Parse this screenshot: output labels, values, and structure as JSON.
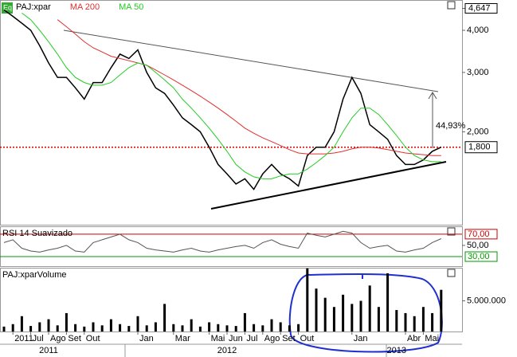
{
  "chart_data": [
    {
      "type": "line",
      "yscale": "log",
      "legend": "top-left",
      "legend_icon": "Eq",
      "ylim": [
        1.06,
        4.92
      ],
      "yticks": [
        {
          "value": 4,
          "label": "4,000"
        },
        {
          "value": 3,
          "label": "3,000"
        },
        {
          "value": 2,
          "label": "2,000"
        }
      ],
      "high_label": {
        "value": 4.647,
        "label": "4,647"
      },
      "reference_line": {
        "value": 1.8,
        "label": "1,800",
        "color": "#dd0000"
      },
      "annotation": "44,93%",
      "series": [
        {
          "name": "PAJ:xpar",
          "color": "#000000",
          "values": [
            4.6,
            4.4,
            4.2,
            4.0,
            3.6,
            3.2,
            2.9,
            2.9,
            2.7,
            2.5,
            2.8,
            2.8,
            3.1,
            3.4,
            3.3,
            3.5,
            3.0,
            2.7,
            2.6,
            2.4,
            2.2,
            2.1,
            2.0,
            1.8,
            1.6,
            1.5,
            1.4,
            1.45,
            1.35,
            1.5,
            1.6,
            1.5,
            1.45,
            1.38,
            1.7,
            1.8,
            1.8,
            2.0,
            2.5,
            2.9,
            2.6,
            2.1,
            2.0,
            1.9,
            1.7,
            1.6,
            1.6,
            1.65,
            1.75,
            1.8
          ]
        },
        {
          "name": "MA 200",
          "color": "#e03030",
          "values": [
            null,
            null,
            null,
            null,
            null,
            null,
            4.3,
            4.1,
            3.9,
            3.7,
            3.55,
            3.45,
            3.35,
            3.3,
            3.25,
            3.2,
            3.15,
            3.05,
            2.95,
            2.85,
            2.75,
            2.65,
            2.55,
            2.45,
            2.35,
            2.25,
            2.15,
            2.05,
            1.98,
            1.92,
            1.87,
            1.82,
            1.77,
            1.73,
            1.72,
            1.72,
            1.72,
            1.73,
            1.75,
            1.78,
            1.8,
            1.8,
            1.79,
            1.77,
            1.75,
            1.73,
            1.72,
            1.71,
            1.7,
            1.7
          ]
        },
        {
          "name": "MA 50",
          "color": "#22cc22",
          "values": [
            null,
            null,
            4.5,
            4.3,
            4.0,
            3.7,
            3.4,
            3.1,
            2.9,
            2.8,
            2.75,
            2.75,
            2.8,
            2.95,
            3.1,
            3.2,
            3.15,
            3.0,
            2.85,
            2.7,
            2.5,
            2.35,
            2.2,
            2.05,
            1.9,
            1.75,
            1.6,
            1.52,
            1.47,
            1.45,
            1.45,
            1.48,
            1.5,
            1.5,
            1.55,
            1.62,
            1.7,
            1.8,
            2.0,
            2.2,
            2.35,
            2.35,
            2.25,
            2.1,
            1.95,
            1.8,
            1.7,
            1.65,
            1.63,
            1.63
          ]
        }
      ]
    },
    {
      "type": "line",
      "ylim": [
        13,
        84
      ],
      "yticks": [
        {
          "value": 50,
          "label": "50,00"
        }
      ],
      "levels": [
        {
          "value": 70,
          "label": "70,00",
          "color": "#cc0000"
        },
        {
          "value": 30,
          "label": "30,00",
          "color": "#009900"
        }
      ],
      "series": [
        {
          "name": "RSI 14 Suavizado",
          "color": "#555555",
          "values": [
            55,
            60,
            45,
            40,
            38,
            42,
            45,
            50,
            40,
            38,
            55,
            60,
            65,
            70,
            60,
            55,
            45,
            42,
            40,
            38,
            42,
            45,
            40,
            38,
            42,
            45,
            48,
            50,
            45,
            55,
            60,
            52,
            48,
            45,
            72,
            68,
            65,
            70,
            75,
            72,
            55,
            45,
            48,
            50,
            40,
            38,
            42,
            45,
            55,
            62
          ]
        }
      ]
    },
    {
      "type": "bar",
      "ylim": [
        0,
        10400000
      ],
      "yticks": [
        {
          "value": 5000000,
          "label": "5.000.000"
        }
      ],
      "categories": [
        null,
        "2011",
        null,
        "Jul",
        null,
        "Ago",
        null,
        "Set",
        null,
        "Out",
        null,
        null,
        null,
        null,
        null,
        "Jan",
        null,
        null,
        null,
        "Mar",
        null,
        null,
        null,
        "Mai",
        null,
        "Jun",
        null,
        "Jul",
        null,
        "Ago",
        null,
        "Set",
        null,
        "Out",
        null,
        null,
        null,
        null,
        null,
        "Jan",
        null,
        null,
        null,
        null,
        null,
        "Abr",
        null,
        "Mai",
        null,
        null
      ],
      "year_labels": [
        null,
        null,
        null,
        null,
        null,
        "2011",
        null,
        null,
        null,
        null,
        null,
        null,
        null,
        null,
        null,
        null,
        null,
        null,
        null,
        null,
        null,
        null,
        null,
        null,
        null,
        "2012",
        null,
        null,
        null,
        null,
        null,
        null,
        null,
        null,
        null,
        null,
        null,
        null,
        null,
        null,
        null,
        null,
        null,
        null,
        "2013",
        null,
        null,
        null,
        null,
        null
      ],
      "series": [
        {
          "name": "PAJ:xparVolume",
          "color": "#000000",
          "values": [
            800000,
            1200000,
            2500000,
            900000,
            1500000,
            2000000,
            1000000,
            3000000,
            1200000,
            800000,
            1500000,
            1000000,
            2000000,
            1200000,
            900000,
            2500000,
            1000000,
            1500000,
            4500000,
            1200000,
            1000000,
            2000000,
            800000,
            1500000,
            1200000,
            1000000,
            900000,
            3000000,
            1200000,
            1000000,
            2000000,
            1500000,
            1000000,
            1200000,
            10300000,
            7000000,
            5500000,
            4000000,
            6000000,
            4500000,
            5000000,
            7500000,
            4000000,
            9500000,
            3500000,
            3000000,
            2500000,
            4000000,
            3000000,
            6800000
          ]
        }
      ]
    }
  ]
}
